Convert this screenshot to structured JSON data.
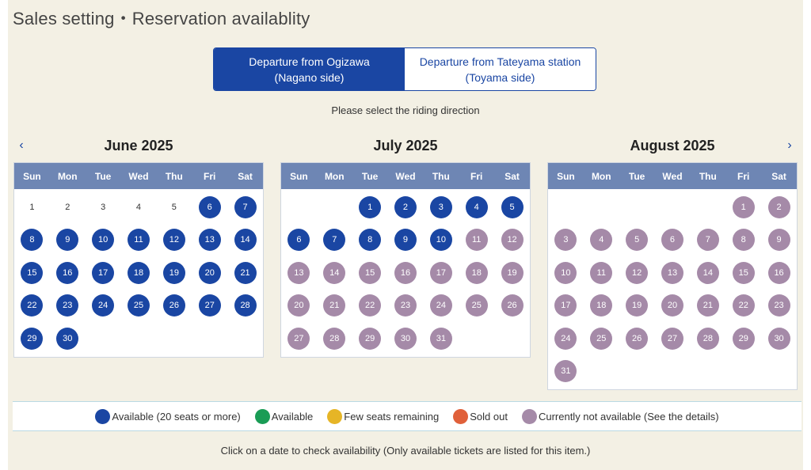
{
  "page": {
    "title": "Sales setting・Reservation availablity",
    "hint": "Please select the riding direction",
    "footer": "Click on a date to check availability (Only available tickets are listed for this item.)"
  },
  "direction_toggle": {
    "options": [
      {
        "line1": "Departure from Ogizawa",
        "line2": "(Nagano side)",
        "selected": true
      },
      {
        "line1": "Departure from Tateyama station",
        "line2": "(Toyama side)",
        "selected": false
      }
    ]
  },
  "nav": {
    "prev": "‹",
    "next": "›"
  },
  "colors": {
    "available20": "#1a46a3",
    "available": "#1a9c55",
    "few": "#e6b526",
    "soldout": "#e0603a",
    "unavailable": "#a58aa8"
  },
  "weekdays": [
    "Sun",
    "Mon",
    "Tue",
    "Wed",
    "Thu",
    "Fri",
    "Sat"
  ],
  "months": [
    {
      "title": "June 2025",
      "offset": 0,
      "days": 30,
      "statuses": [
        "plain",
        "plain",
        "plain",
        "plain",
        "plain",
        "available20",
        "available20",
        "available20",
        "available20",
        "available20",
        "available20",
        "available20",
        "available20",
        "available20",
        "available20",
        "available20",
        "available20",
        "available20",
        "available20",
        "available20",
        "available20",
        "available20",
        "available20",
        "available20",
        "available20",
        "available20",
        "available20",
        "available20",
        "available20",
        "available20"
      ]
    },
    {
      "title": "July 2025",
      "offset": 2,
      "days": 31,
      "statuses": [
        "available20",
        "available20",
        "available20",
        "available20",
        "available20",
        "available20",
        "available20",
        "available20",
        "available20",
        "available20",
        "unavailable",
        "unavailable",
        "unavailable",
        "unavailable",
        "unavailable",
        "unavailable",
        "unavailable",
        "unavailable",
        "unavailable",
        "unavailable",
        "unavailable",
        "unavailable",
        "unavailable",
        "unavailable",
        "unavailable",
        "unavailable",
        "unavailable",
        "unavailable",
        "unavailable",
        "unavailable",
        "unavailable"
      ]
    },
    {
      "title": "August 2025",
      "offset": 5,
      "days": 31,
      "statuses": [
        "unavailable",
        "unavailable",
        "unavailable",
        "unavailable",
        "unavailable",
        "unavailable",
        "unavailable",
        "unavailable",
        "unavailable",
        "unavailable",
        "unavailable",
        "unavailable",
        "unavailable",
        "unavailable",
        "unavailable",
        "unavailable",
        "unavailable",
        "unavailable",
        "unavailable",
        "unavailable",
        "unavailable",
        "unavailable",
        "unavailable",
        "unavailable",
        "unavailable",
        "unavailable",
        "unavailable",
        "unavailable",
        "unavailable",
        "unavailable",
        "unavailable"
      ]
    }
  ],
  "legend": [
    {
      "status": "available20",
      "label": "Available (20 seats or more)"
    },
    {
      "status": "available",
      "label": "Available"
    },
    {
      "status": "few",
      "label": "Few seats remaining"
    },
    {
      "status": "soldout",
      "label": "Sold out"
    },
    {
      "status": "unavailable",
      "label": "Currently not available (See the details)"
    }
  ]
}
